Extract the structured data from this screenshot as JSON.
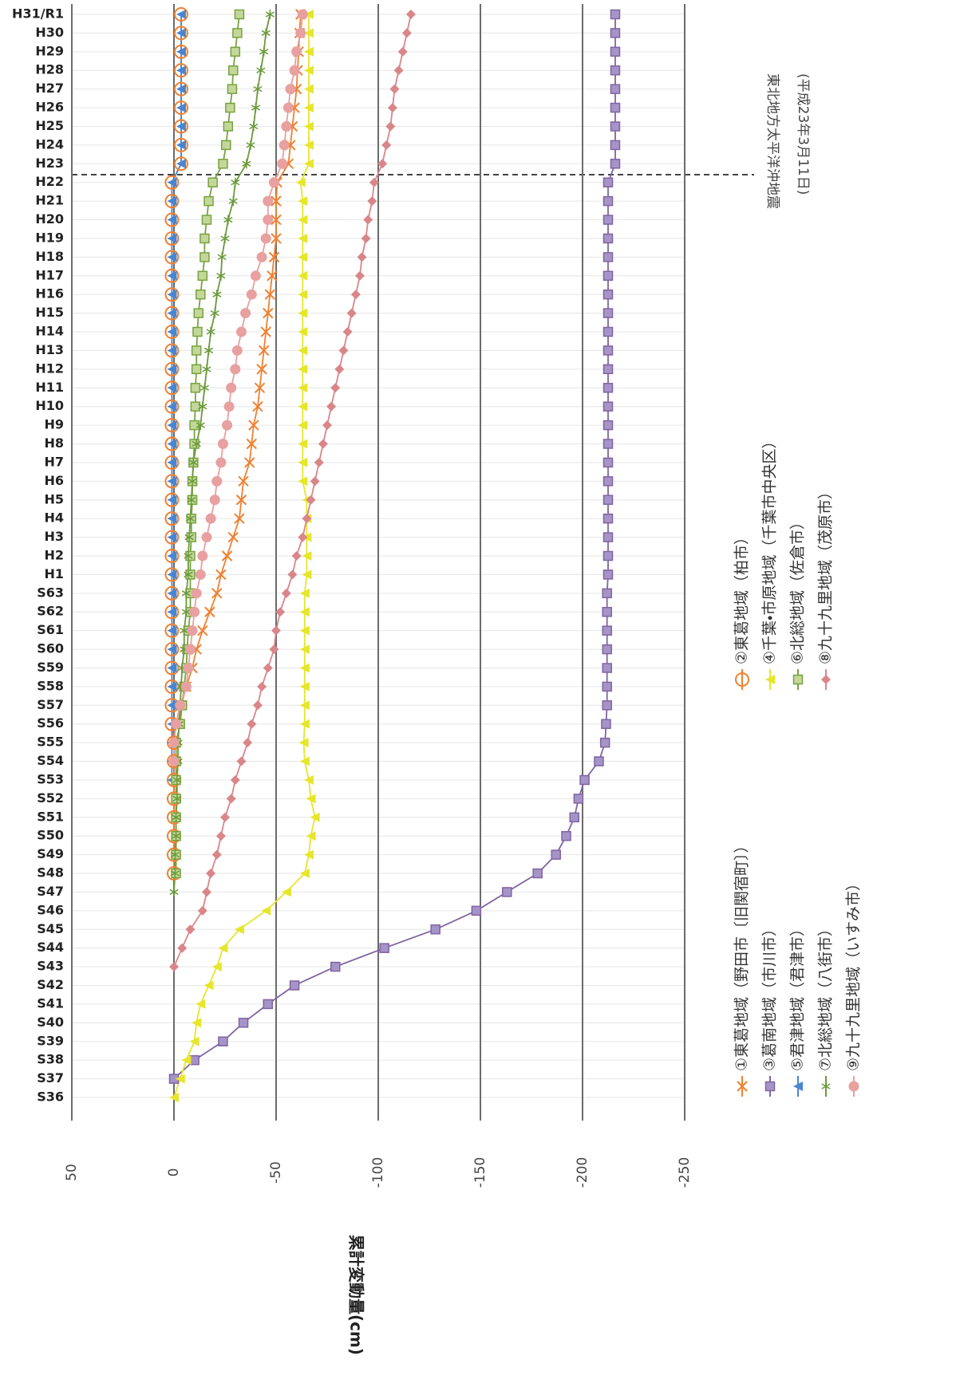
{
  "chart_data": {
    "type": "line",
    "y_label": "累計変動量(cm)",
    "annotations": [
      "東北地方太平洋沖地震",
      "(平成23年3月11日)"
    ],
    "categories": [
      "S36",
      "S37",
      "S38",
      "S39",
      "S40",
      "S41",
      "S42",
      "S43",
      "S44",
      "S45",
      "S46",
      "S47",
      "S48",
      "S49",
      "S50",
      "S51",
      "S52",
      "S53",
      "S54",
      "S55",
      "S56",
      "S57",
      "S58",
      "S59",
      "S60",
      "S61",
      "S62",
      "S63",
      "H1",
      "H2",
      "H3",
      "H4",
      "H5",
      "H6",
      "H7",
      "H8",
      "H9",
      "H10",
      "H11",
      "H12",
      "H13",
      "H14",
      "H15",
      "H16",
      "H17",
      "H18",
      "H19",
      "H20",
      "H21",
      "H22",
      "H23",
      "H24",
      "H25",
      "H26",
      "H27",
      "H28",
      "H29",
      "H30",
      "H31/R1"
    ],
    "ylim": [
      -250,
      50
    ],
    "yticks": [
      50,
      0,
      -50,
      -100,
      -150,
      -200,
      -250
    ],
    "grid": true,
    "series": [
      {
        "name": "①東葛地域（野田市〔旧関宿町〕）",
        "color": "#f08030",
        "marker": "x",
        "values": [
          null,
          null,
          null,
          null,
          null,
          null,
          null,
          null,
          null,
          null,
          null,
          null,
          null,
          null,
          null,
          null,
          null,
          null,
          null,
          null,
          -2,
          -3.5,
          -6,
          -9,
          -11,
          -14,
          -17.5,
          -21,
          -23,
          -26,
          -29,
          -32,
          -33,
          -34,
          -37,
          -38,
          -39,
          -41,
          -42,
          -43,
          -44,
          -45,
          -46,
          -47,
          -48,
          -49,
          -50,
          -50,
          -50,
          -50.5,
          -56,
          -57,
          -58,
          -59,
          -60,
          -60.5,
          -61,
          -61.5,
          -62
        ]
      },
      {
        "name": "②東葛地域（柏市）",
        "color": "#f08030",
        "marker": "open-circle",
        "values": [
          null,
          null,
          null,
          null,
          null,
          null,
          null,
          null,
          null,
          null,
          null,
          null,
          0,
          0,
          0,
          0,
          0,
          0,
          0,
          0,
          1,
          1,
          1,
          1,
          1,
          1,
          1,
          1,
          1,
          1,
          1,
          1,
          1,
          1,
          1,
          1,
          1,
          1,
          1,
          1,
          1,
          1,
          1,
          1,
          1,
          1,
          1,
          1,
          1,
          1,
          -3.5,
          -3.5,
          -3.5,
          -3.5,
          -3.5,
          -3.5,
          -3.5,
          -3.5,
          -3.5
        ]
      },
      {
        "name": "③葛南地域（市川市）",
        "color": "#8064a2",
        "marker": "square",
        "values": [
          null,
          0,
          -10,
          -24,
          -34,
          -46,
          -59,
          -79,
          -103,
          -128,
          -148,
          -163,
          -178,
          -187,
          -192,
          -196,
          -198,
          -201,
          -208,
          -211,
          -211.5,
          -212,
          -212,
          -212,
          -212,
          -212,
          -212,
          -212,
          -212.5,
          -212.5,
          -212.5,
          -212.5,
          -212.5,
          -212.5,
          -212.5,
          -212.5,
          -212.5,
          -212.5,
          -212.5,
          -212.5,
          -212.5,
          -212.5,
          -212.5,
          -212.5,
          -212.5,
          -212.5,
          -212.5,
          -212.5,
          -212.5,
          -212.5,
          -216,
          -216,
          -216,
          -216,
          -216,
          -216,
          -216,
          -216,
          -216
        ]
      },
      {
        "name": "④千葉・市原地域（千葉市中央区）",
        "color": "#e6e62a",
        "marker": "triangle",
        "values": [
          0,
          -3,
          -6,
          -10,
          -11,
          -13,
          -17,
          -21,
          -24,
          -32,
          -45,
          -55,
          -64,
          -66,
          -67,
          -69,
          -67,
          -66,
          -64,
          -63.5,
          -64,
          -64,
          -64,
          -64,
          -64,
          -64,
          -64,
          -64,
          -65,
          -65,
          -65,
          -65,
          -65,
          -63,
          -63,
          -63,
          -63,
          -63,
          -63,
          -63,
          -63,
          -63,
          -63,
          -63,
          -63,
          -63,
          -63,
          -63,
          -63,
          -62,
          -66,
          -66,
          -66,
          -66,
          -66,
          -66,
          -66,
          -66,
          -66
        ]
      },
      {
        "name": "⑤君津地域（君津市）",
        "color": "#4a86d0",
        "marker": "triangle",
        "values": [
          null,
          null,
          null,
          null,
          null,
          null,
          null,
          null,
          null,
          null,
          null,
          null,
          null,
          null,
          null,
          null,
          null,
          1,
          1,
          1,
          1,
          1,
          1,
          1,
          1,
          1,
          1,
          1,
          1,
          1,
          1,
          1,
          1,
          1,
          1,
          1,
          1,
          1,
          1,
          1,
          1,
          1,
          1,
          1,
          1,
          1,
          1,
          1,
          1,
          1,
          -3.5,
          -3.5,
          -3.5,
          -3.5,
          -3.5,
          -3.5,
          -3.5,
          -3.5,
          -3.5
        ]
      },
      {
        "name": "⑥北総地域（佐倉市）",
        "color": "#77a33f",
        "marker": "open-square",
        "values": [
          null,
          null,
          null,
          null,
          null,
          null,
          null,
          null,
          null,
          null,
          null,
          null,
          -1,
          -1,
          -1,
          -1,
          -1,
          -1,
          -1,
          -1,
          -3,
          -4,
          -5,
          -6,
          -6.5,
          -7,
          -8,
          -8,
          -8,
          -8,
          -8.5,
          -8.5,
          -9,
          -9,
          -9.5,
          -10,
          -10,
          -10.5,
          -10.5,
          -11,
          -11,
          -11.5,
          -12,
          -13,
          -14,
          -15,
          -15,
          -16,
          -17,
          -19,
          -24,
          -25.5,
          -26.5,
          -27.5,
          -28.5,
          -29,
          -30,
          -31,
          -32
        ]
      },
      {
        "name": "⑦北総地域（八街市）",
        "color": "#6a9a3a",
        "marker": "asterisk",
        "values": [
          null,
          null,
          null,
          null,
          null,
          null,
          null,
          null,
          null,
          null,
          null,
          0,
          -0.5,
          -0.5,
          -1,
          -1,
          -1.5,
          -1.5,
          -2,
          -2,
          -2.5,
          -3,
          -3.5,
          -4,
          -5,
          -5,
          -6,
          -6,
          -7,
          -7,
          -7.5,
          -8,
          -8.5,
          -9,
          -9.5,
          -11,
          -13,
          -14,
          -15,
          -16,
          -17,
          -18,
          -20,
          -21,
          -23,
          -23.5,
          -25,
          -26.5,
          -29,
          -30,
          -35.5,
          -37.5,
          -39,
          -40,
          -41,
          -42.5,
          -44,
          -45,
          -47
        ]
      },
      {
        "name": "⑧九十九里地域（茂原市）",
        "color": "#d9868a",
        "marker": "diamond",
        "values": [
          null,
          null,
          null,
          null,
          null,
          null,
          null,
          0,
          -4,
          -8,
          -14,
          -16,
          -18,
          -21,
          -23,
          -25,
          -28,
          -30,
          -33,
          -36,
          -38,
          -41,
          -43,
          -46,
          -49,
          -50,
          -52,
          -55,
          -58,
          -60,
          -63,
          -65,
          -67,
          -69,
          -71,
          -73,
          -75,
          -77,
          -79,
          -81,
          -83,
          -85,
          -87,
          -89,
          -91,
          -92,
          -94,
          -95,
          -97,
          -98,
          -102,
          -104,
          -106,
          -107,
          -108,
          -110,
          -112,
          -114,
          -116
        ]
      },
      {
        "name": "⑨九十九里地域（いすみ市）",
        "color": "#e8a0a0",
        "marker": "circle",
        "values": [
          null,
          null,
          null,
          null,
          null,
          null,
          null,
          null,
          null,
          null,
          null,
          null,
          null,
          null,
          null,
          null,
          null,
          null,
          0,
          0,
          -1,
          -3,
          -6,
          -7,
          -8,
          -9,
          -10,
          -11,
          -13,
          -14,
          -16,
          -18,
          -20,
          -21,
          -23,
          -24,
          -26,
          -27,
          -28,
          -30,
          -31,
          -33,
          -35,
          -38,
          -40,
          -43,
          -45,
          -46,
          -46,
          -49,
          -53,
          -54,
          -55,
          -56,
          -57,
          -59,
          -60,
          -62,
          -63
        ]
      }
    ]
  }
}
